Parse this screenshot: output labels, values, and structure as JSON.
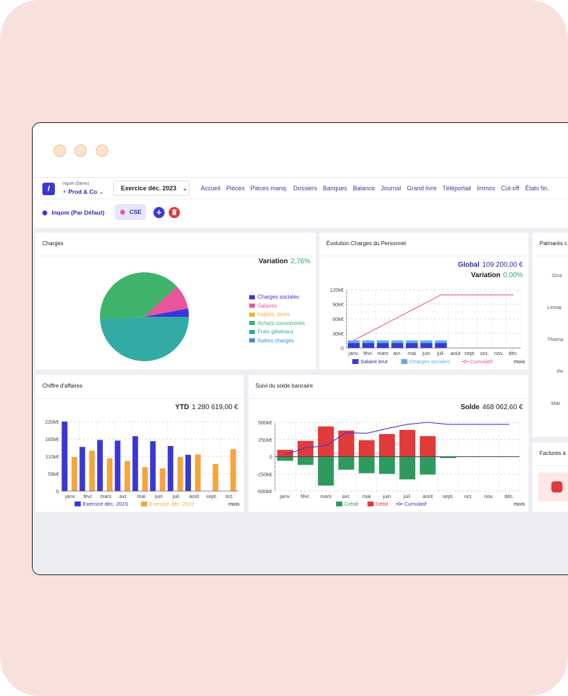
{
  "header": {
    "company_small": "Inqom (Démo)",
    "company_name": "Prod & Co",
    "fiscal_year": "Exercice déc. 2023",
    "nav": [
      "Accueil",
      "Pièces",
      "Pièces manq.",
      "Dossiers",
      "Banques",
      "Balance",
      "Journal",
      "Grand livre",
      "Téléportail",
      "Immos",
      "Cut-off",
      "États fin."
    ]
  },
  "tags": {
    "default": "Inqom (Par Défaut)",
    "cse": "CSE"
  },
  "help_label": "?",
  "cards": {
    "charges": {
      "title": "Charges",
      "kpi_label": "Variation",
      "kpi_value": "2,76%"
    },
    "personnel": {
      "title": "Évolution Charges du Personnel",
      "kpi1_label": "Global",
      "kpi1_value": "109 200,00 €",
      "kpi2_label": "Variation",
      "kpi2_value": "0,00%"
    },
    "palmares": {
      "title": "Palmarès c",
      "names": [
        "Gira",
        "Lemai",
        "Thoma",
        "Pe",
        "Mar"
      ]
    },
    "ca": {
      "title": "Chiffre d'affaires",
      "kpi_label": "YTD",
      "kpi_value": "1 280 619,00 €"
    },
    "bank": {
      "title": "Suivi du solde bancaire",
      "kpi_label": "Solde",
      "kpi_value": "468 062,60 €"
    },
    "invoices": {
      "title": "Factures à"
    }
  },
  "colors": {
    "accent": "#3a37d8",
    "green": "#2aa56a",
    "pink": "#e8559a",
    "orange": "#f7a43a",
    "red": "#e03a3a"
  },
  "chart_data": [
    {
      "type": "pie",
      "title": "Charges",
      "categories": [
        "Charges sociales",
        "Salaires",
        "Impots, taxes",
        "Achats consommés",
        "Frais généraux",
        "Autres charges"
      ],
      "values": [
        3,
        9,
        0,
        39,
        49,
        0
      ],
      "colors": [
        "#3a37d8",
        "#e8559a",
        "#e8b530",
        "#3fb36a",
        "#31aba3",
        "#3b8fd8"
      ],
      "legend": "right"
    },
    {
      "type": "bar",
      "title": "Évolution Charges du Personnel",
      "categories": [
        "janv.",
        "févr.",
        "mars",
        "avr.",
        "mai",
        "juin",
        "juil.",
        "août",
        "sept.",
        "oct.",
        "nov.",
        "déc."
      ],
      "series": [
        {
          "name": "Salaire brut",
          "values": [
            10000,
            10000,
            10000,
            10000,
            10000,
            10000,
            10000,
            null,
            null,
            null,
            null,
            null
          ],
          "color": "#3a37d8"
        },
        {
          "name": "Charges sociales",
          "values": [
            5600,
            5600,
            5600,
            5600,
            5600,
            5600,
            5600,
            null,
            null,
            null,
            null,
            null
          ],
          "color": "#5aaee8"
        },
        {
          "name": "Cumulatif",
          "type": "line",
          "values": [
            15600,
            31200,
            46800,
            62400,
            78000,
            93600,
            109200,
            109200,
            109200,
            109200,
            109200,
            109200
          ],
          "color": "#e8559a"
        }
      ],
      "y_ticks": [
        "0",
        "30k€",
        "60k€",
        "90k€",
        "120k€"
      ],
      "ylim": [
        0,
        120000
      ],
      "xlabel": "mois",
      "legend": "bottom"
    },
    {
      "type": "bar",
      "title": "Chiffre d'affaires",
      "categories": [
        "janv.",
        "févr.",
        "mars",
        "avr.",
        "mai",
        "juin",
        "juil.",
        "août",
        "sept.",
        "oct."
      ],
      "series": [
        {
          "name": "Exercice déc. 2023",
          "values": [
            220000,
            140000,
            162000,
            160000,
            174000,
            158000,
            143000,
            115000,
            null,
            null
          ],
          "color": "#3a37d8"
        },
        {
          "name": "Exercice déc. 2022",
          "values": [
            108000,
            128000,
            104000,
            95000,
            76000,
            72000,
            108000,
            116000,
            86000,
            133000
          ],
          "color": "#f7a43a"
        }
      ],
      "y_ticks": [
        "0",
        "55k€",
        "110k€",
        "165k€",
        "220k€"
      ],
      "ylim": [
        0,
        220000
      ],
      "xlabel": "mois",
      "legend": "bottom"
    },
    {
      "type": "bar",
      "title": "Suivi du solde bancaire",
      "categories": [
        "janv.",
        "févr.",
        "mars",
        "avr.",
        "mai",
        "juin",
        "juil.",
        "août",
        "sept.",
        "oct.",
        "nov.",
        "déc."
      ],
      "series": [
        {
          "name": "Crédit",
          "values": [
            -60000,
            -120000,
            -420000,
            -190000,
            -240000,
            -250000,
            -330000,
            -260000,
            -20000,
            null,
            null,
            null
          ],
          "color": "#2e9a5f"
        },
        {
          "name": "Débit",
          "values": [
            100000,
            230000,
            440000,
            380000,
            240000,
            330000,
            390000,
            300000,
            null,
            null,
            null,
            null
          ],
          "color": "#e03a3a"
        },
        {
          "name": "Cumulatif",
          "type": "line",
          "values": [
            30000,
            130000,
            160000,
            350000,
            340000,
            410000,
            470000,
            500000,
            470000,
            470000,
            470000,
            470000
          ],
          "color": "#3a37d8"
        }
      ],
      "y_ticks": [
        "-500k€",
        "-250k€",
        "0",
        "250k€",
        "500k€"
      ],
      "ylim": [
        -500000,
        500000
      ],
      "xlabel": "mois",
      "legend": "bottom"
    }
  ]
}
